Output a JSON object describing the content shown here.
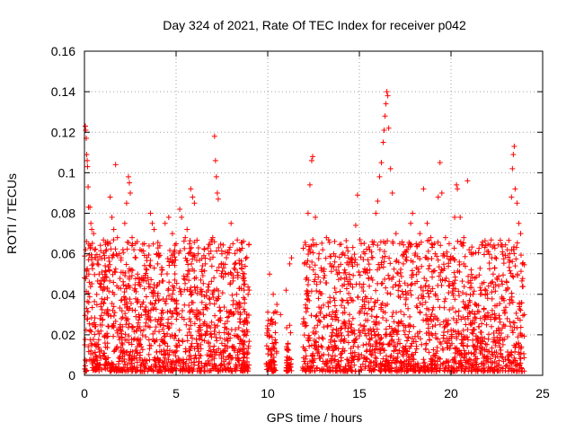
{
  "chart_data": {
    "type": "scatter",
    "title": "Day 324 of 2021, Rate Of TEC Index for receiver p042",
    "xlabel": "GPS time / hours",
    "ylabel": "ROTI / TECUs",
    "xlim": [
      0,
      25
    ],
    "ylim": [
      0,
      0.16
    ],
    "x_ticks": [
      0,
      5,
      10,
      15,
      20,
      25
    ],
    "x_tick_labels": [
      "0",
      "5",
      "10",
      "15",
      "20",
      "25"
    ],
    "y_ticks": [
      0,
      0.02,
      0.04,
      0.06,
      0.08,
      0.1,
      0.12,
      0.14,
      0.16
    ],
    "y_tick_labels": [
      "0",
      "0.02",
      "0.04",
      "0.06",
      "0.08",
      "0.1",
      "0.12",
      "0.14",
      "0.16"
    ],
    "grid": true,
    "marker": "+",
    "marker_color": "#ff0000",
    "series": [
      {
        "points": [
          [
            0.05,
            0.123
          ],
          [
            0.07,
            0.121
          ],
          [
            0.1,
            0.117
          ],
          [
            0.12,
            0.109
          ],
          [
            0.15,
            0.106
          ],
          [
            0.17,
            0.103
          ],
          [
            0.2,
            0.093
          ],
          [
            0.22,
            0.083
          ],
          [
            0.3,
            0.083
          ],
          [
            0.35,
            0.075
          ],
          [
            0.4,
            0.072
          ],
          [
            0.5,
            0.07
          ],
          [
            0.55,
            0.062
          ],
          [
            0.6,
            0.058
          ],
          [
            0.7,
            0.055
          ],
          [
            0.8,
            0.05
          ],
          [
            0.9,
            0.045
          ],
          [
            1.0,
            0.042
          ],
          [
            1.1,
            0.047
          ],
          [
            1.2,
            0.062
          ],
          [
            1.3,
            0.065
          ],
          [
            1.4,
            0.088
          ],
          [
            1.5,
            0.078
          ],
          [
            1.6,
            0.072
          ],
          [
            1.7,
            0.104
          ],
          [
            1.8,
            0.068
          ],
          [
            1.9,
            0.06
          ],
          [
            2.0,
            0.058
          ],
          [
            2.1,
            0.062
          ],
          [
            2.2,
            0.075
          ],
          [
            2.3,
            0.085
          ],
          [
            2.4,
            0.098
          ],
          [
            2.45,
            0.095
          ],
          [
            2.5,
            0.09
          ],
          [
            2.6,
            0.068
          ],
          [
            2.7,
            0.062
          ],
          [
            2.8,
            0.058
          ],
          [
            2.9,
            0.05
          ],
          [
            3.0,
            0.045
          ],
          [
            3.2,
            0.048
          ],
          [
            3.4,
            0.052
          ],
          [
            3.6,
            0.08
          ],
          [
            3.7,
            0.075
          ],
          [
            3.8,
            0.072
          ],
          [
            4.0,
            0.055
          ],
          [
            4.2,
            0.05
          ],
          [
            4.4,
            0.075
          ],
          [
            4.6,
            0.078
          ],
          [
            4.8,
            0.07
          ],
          [
            5.0,
            0.065
          ],
          [
            5.2,
            0.082
          ],
          [
            5.3,
            0.078
          ],
          [
            5.5,
            0.068
          ],
          [
            5.6,
            0.072
          ],
          [
            5.8,
            0.092
          ],
          [
            5.9,
            0.088
          ],
          [
            6.0,
            0.085
          ],
          [
            6.2,
            0.06
          ],
          [
            6.4,
            0.052
          ],
          [
            6.6,
            0.055
          ],
          [
            6.8,
            0.06
          ],
          [
            7.0,
            0.068
          ],
          [
            7.1,
            0.118
          ],
          [
            7.15,
            0.106
          ],
          [
            7.2,
            0.098
          ],
          [
            7.25,
            0.09
          ],
          [
            7.3,
            0.087
          ],
          [
            7.5,
            0.06
          ],
          [
            7.7,
            0.05
          ],
          [
            7.9,
            0.062
          ],
          [
            8.0,
            0.075
          ],
          [
            8.1,
            0.065
          ],
          [
            8.3,
            0.04
          ],
          [
            8.5,
            0.03
          ],
          [
            8.7,
            0.048
          ],
          [
            10.1,
            0.05
          ],
          [
            10.3,
            0.04
          ],
          [
            10.5,
            0.035
          ],
          [
            10.7,
            0.03
          ],
          [
            11.0,
            0.042
          ],
          [
            11.2,
            0.055
          ],
          [
            11.3,
            0.058
          ],
          [
            12.0,
            0.055
          ],
          [
            12.2,
            0.08
          ],
          [
            12.3,
            0.094
          ],
          [
            12.4,
            0.106
          ],
          [
            12.45,
            0.108
          ],
          [
            12.6,
            0.078
          ],
          [
            12.8,
            0.06
          ],
          [
            13.0,
            0.062
          ],
          [
            13.2,
            0.068
          ],
          [
            13.4,
            0.055
          ],
          [
            13.6,
            0.06
          ],
          [
            13.8,
            0.05
          ],
          [
            14.0,
            0.048
          ],
          [
            14.2,
            0.052
          ],
          [
            14.4,
            0.045
          ],
          [
            14.6,
            0.058
          ],
          [
            14.8,
            0.074
          ],
          [
            14.9,
            0.089
          ],
          [
            15.1,
            0.065
          ],
          [
            15.3,
            0.06
          ],
          [
            15.5,
            0.048
          ],
          [
            15.7,
            0.066
          ],
          [
            15.9,
            0.08
          ],
          [
            16.0,
            0.086
          ],
          [
            16.1,
            0.098
          ],
          [
            16.2,
            0.105
          ],
          [
            16.3,
            0.115
          ],
          [
            16.35,
            0.121
          ],
          [
            16.4,
            0.128
          ],
          [
            16.45,
            0.134
          ],
          [
            16.5,
            0.14
          ],
          [
            16.55,
            0.138
          ],
          [
            16.6,
            0.122
          ],
          [
            16.7,
            0.102
          ],
          [
            16.8,
            0.09
          ],
          [
            17.0,
            0.07
          ],
          [
            17.2,
            0.065
          ],
          [
            17.4,
            0.055
          ],
          [
            17.6,
            0.062
          ],
          [
            17.8,
            0.075
          ],
          [
            17.9,
            0.08
          ],
          [
            18.1,
            0.065
          ],
          [
            18.3,
            0.07
          ],
          [
            18.5,
            0.092
          ],
          [
            18.7,
            0.075
          ],
          [
            18.9,
            0.068
          ],
          [
            19.1,
            0.065
          ],
          [
            19.3,
            0.088
          ],
          [
            19.4,
            0.105
          ],
          [
            19.5,
            0.09
          ],
          [
            19.7,
            0.068
          ],
          [
            19.9,
            0.065
          ],
          [
            20.1,
            0.058
          ],
          [
            20.2,
            0.078
          ],
          [
            20.3,
            0.094
          ],
          [
            20.35,
            0.092
          ],
          [
            20.5,
            0.078
          ],
          [
            20.7,
            0.068
          ],
          [
            20.9,
            0.096
          ],
          [
            21.1,
            0.052
          ],
          [
            21.3,
            0.048
          ],
          [
            21.6,
            0.04
          ],
          [
            22.0,
            0.038
          ],
          [
            22.3,
            0.05
          ],
          [
            22.5,
            0.048
          ],
          [
            22.8,
            0.045
          ],
          [
            23.0,
            0.042
          ],
          [
            23.2,
            0.06
          ],
          [
            23.3,
            0.088
          ],
          [
            23.35,
            0.102
          ],
          [
            23.4,
            0.109
          ],
          [
            23.45,
            0.113
          ],
          [
            23.5,
            0.092
          ],
          [
            23.6,
            0.085
          ],
          [
            23.7,
            0.075
          ],
          [
            23.8,
            0.07
          ],
          [
            23.9,
            0.055
          ],
          [
            24.0,
            0.03
          ]
        ]
      }
    ],
    "density_sampling": {
      "description_free": true,
      "segments": [
        {
          "x0": 0.0,
          "x1": 9.0,
          "ymax": 0.065,
          "count": 1400
        },
        {
          "x0": 9.9,
          "x1": 10.5,
          "ymax": 0.03,
          "count": 80
        },
        {
          "x0": 11.0,
          "x1": 11.3,
          "ymax": 0.025,
          "count": 40
        },
        {
          "x0": 11.9,
          "x1": 24.0,
          "ymax": 0.065,
          "count": 1700
        }
      ]
    }
  }
}
